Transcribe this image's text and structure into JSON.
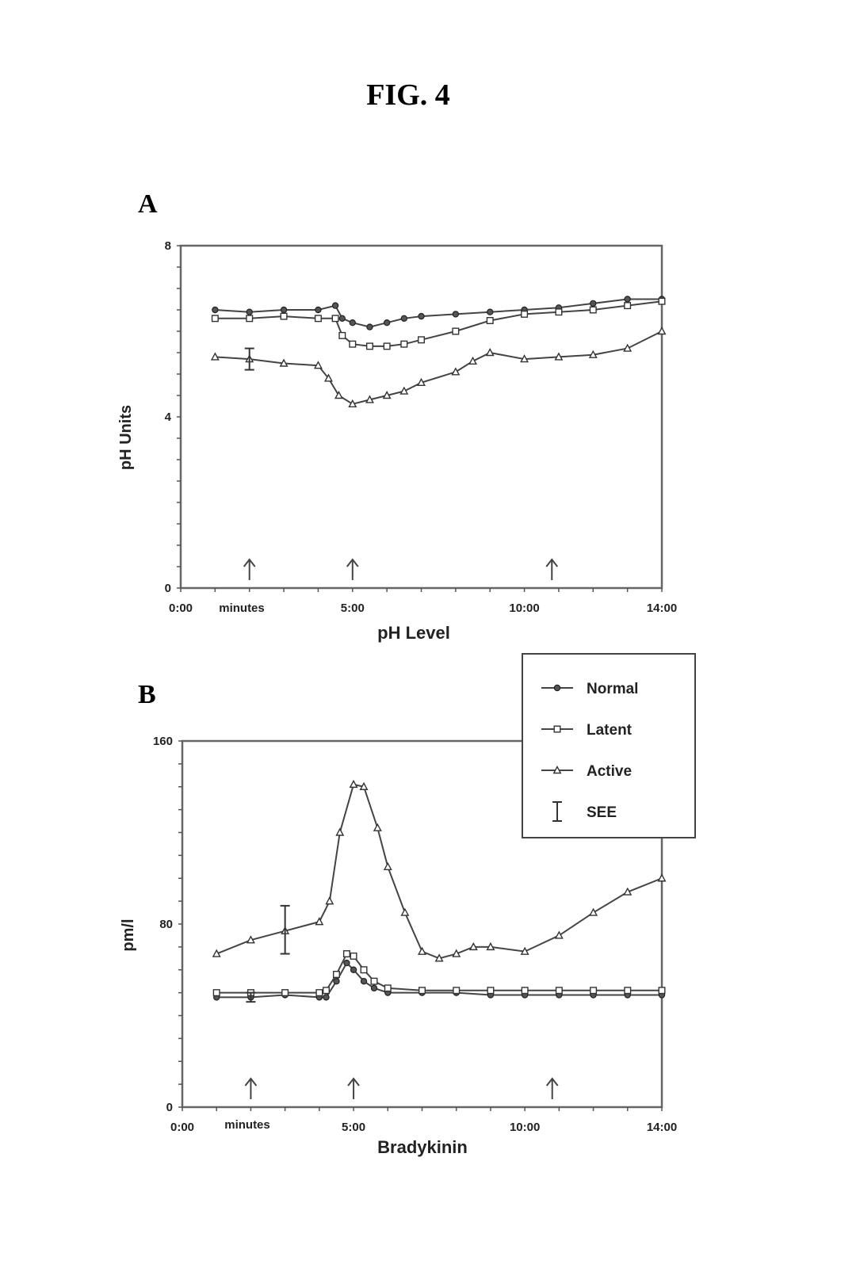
{
  "figure_title": "FIG. 4",
  "legend": {
    "entries": [
      {
        "label": "Normal",
        "marker": "circle"
      },
      {
        "label": "Latent",
        "marker": "square"
      },
      {
        "label": "Active",
        "marker": "triangle"
      },
      {
        "label": "SEE",
        "marker": "errorbar"
      }
    ]
  },
  "chart_data": [
    {
      "panel": "A",
      "type": "line",
      "title": "",
      "xlabel": "pH Level",
      "ylabel": "pH Units",
      "xlim": [
        0,
        14
      ],
      "ylim": [
        0,
        8
      ],
      "x_ticks": [
        {
          "value": 0,
          "label": "0:00"
        },
        {
          "value": 5,
          "label": "5:00"
        },
        {
          "value": 10,
          "label": "10:00"
        },
        {
          "value": 14,
          "label": "14:00"
        }
      ],
      "x_annotation": {
        "value": 2,
        "label": "minutes"
      },
      "y_ticks": [
        0,
        4,
        8
      ],
      "arrows_at": [
        2,
        5,
        10.8
      ],
      "series": [
        {
          "name": "Normal",
          "marker": "circle",
          "x": [
            1,
            2,
            3,
            4,
            4.5,
            4.7,
            5,
            5.5,
            6,
            6.5,
            7,
            8,
            9,
            10,
            11,
            12,
            13,
            14
          ],
          "y": [
            6.5,
            6.45,
            6.5,
            6.5,
            6.6,
            6.3,
            6.2,
            6.1,
            6.2,
            6.3,
            6.35,
            6.4,
            6.45,
            6.5,
            6.55,
            6.65,
            6.75,
            6.75
          ]
        },
        {
          "name": "Latent",
          "marker": "square",
          "x": [
            1,
            2,
            3,
            4,
            4.5,
            4.7,
            5,
            5.5,
            6,
            6.5,
            7,
            8,
            9,
            10,
            11,
            12,
            13,
            14
          ],
          "y": [
            6.3,
            6.3,
            6.35,
            6.3,
            6.3,
            5.9,
            5.7,
            5.65,
            5.65,
            5.7,
            5.8,
            6.0,
            6.25,
            6.4,
            6.45,
            6.5,
            6.6,
            6.7
          ]
        },
        {
          "name": "Active",
          "marker": "triangle",
          "x": [
            1,
            2,
            3,
            4,
            4.3,
            4.6,
            5,
            5.5,
            6,
            6.5,
            7,
            8,
            8.5,
            9,
            10,
            11,
            12,
            13,
            14
          ],
          "y": [
            5.4,
            5.35,
            5.25,
            5.2,
            4.9,
            4.5,
            4.3,
            4.4,
            4.5,
            4.6,
            4.8,
            5.05,
            5.3,
            5.5,
            5.35,
            5.4,
            5.45,
            5.6,
            6.0
          ]
        }
      ],
      "error_bars": [
        {
          "x": 2,
          "y": 5.35,
          "low": 5.1,
          "high": 5.6
        }
      ]
    },
    {
      "panel": "B",
      "type": "line",
      "title": "",
      "xlabel": "Bradykinin",
      "ylabel": "pm/l",
      "xlim": [
        0,
        14
      ],
      "ylim": [
        0,
        160
      ],
      "x_ticks": [
        {
          "value": 0,
          "label": "0:00"
        },
        {
          "value": 5,
          "label": "5:00"
        },
        {
          "value": 10,
          "label": "10:00"
        },
        {
          "value": 14,
          "label": "14:00"
        }
      ],
      "x_annotation": {
        "value": 2,
        "label": "minutes"
      },
      "y_ticks": [
        0,
        80,
        160
      ],
      "arrows_at": [
        2,
        5,
        10.8
      ],
      "series": [
        {
          "name": "Normal",
          "marker": "circle",
          "x": [
            1,
            2,
            3,
            4,
            4.2,
            4.5,
            4.8,
            5,
            5.3,
            5.6,
            6,
            7,
            8,
            9,
            10,
            11,
            12,
            13,
            14
          ],
          "y": [
            48,
            48,
            49,
            48,
            48,
            55,
            63,
            60,
            55,
            52,
            50,
            50,
            50,
            49,
            49,
            49,
            49,
            49,
            49
          ]
        },
        {
          "name": "Latent",
          "marker": "square",
          "x": [
            1,
            2,
            3,
            4,
            4.2,
            4.5,
            4.8,
            5,
            5.3,
            5.6,
            6,
            7,
            8,
            9,
            10,
            11,
            12,
            13,
            14
          ],
          "y": [
            50,
            50,
            50,
            50,
            51,
            58,
            67,
            66,
            60,
            55,
            52,
            51,
            51,
            51,
            51,
            51,
            51,
            51,
            51
          ]
        },
        {
          "name": "Active",
          "marker": "triangle",
          "x": [
            1,
            2,
            3,
            4,
            4.3,
            4.6,
            5,
            5.3,
            5.7,
            6,
            6.5,
            7,
            7.5,
            8,
            8.5,
            9,
            10,
            11,
            12,
            13,
            14
          ],
          "y": [
            67,
            73,
            77,
            81,
            90,
            120,
            141,
            140,
            122,
            105,
            85,
            68,
            65,
            67,
            70,
            70,
            68,
            75,
            85,
            94,
            100
          ]
        }
      ],
      "error_bars": [
        {
          "x": 3,
          "y": 77,
          "low": 67,
          "high": 88
        },
        {
          "x": 2,
          "y": 48,
          "low": 46,
          "high": 50
        }
      ]
    }
  ]
}
